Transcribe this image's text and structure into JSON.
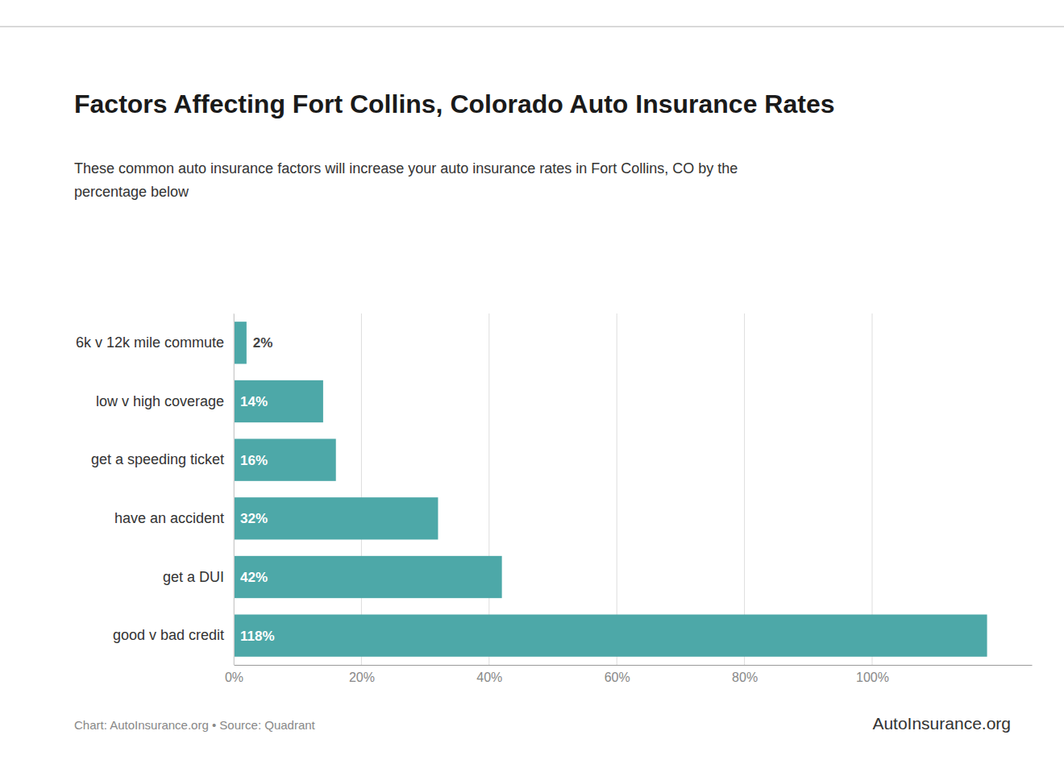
{
  "chart_data": {
    "type": "bar",
    "orientation": "horizontal",
    "title": "Factors Affecting Fort Collins, Colorado Auto Insurance Rates",
    "subtitle": "These common auto insurance factors will increase your auto insurance rates in Fort Collins, CO by the\npercentage below",
    "categories": [
      "good v bad credit",
      "get a DUI",
      "have an accident",
      "get a speeding ticket",
      "low v high coverage",
      "6k v 12k mile commute"
    ],
    "values": [
      118,
      42,
      32,
      16,
      14,
      2
    ],
    "value_labels": [
      "118%",
      "42%",
      "32%",
      "16%",
      "14%",
      "2%"
    ],
    "data_labels": true,
    "color": "#4da8a8",
    "xlim": [
      0,
      125
    ],
    "xticks": [
      {
        "value": 0,
        "label": "0%"
      },
      {
        "value": 20,
        "label": "20%"
      },
      {
        "value": 40,
        "label": "40%"
      },
      {
        "value": 60,
        "label": "60%"
      },
      {
        "value": 80,
        "label": "80%"
      },
      {
        "value": 100,
        "label": "100%"
      }
    ],
    "grid": true,
    "annotations": [
      "Chart: AutoInsurance.org • Source: Quadrant",
      "AutoInsurance.org"
    ]
  }
}
